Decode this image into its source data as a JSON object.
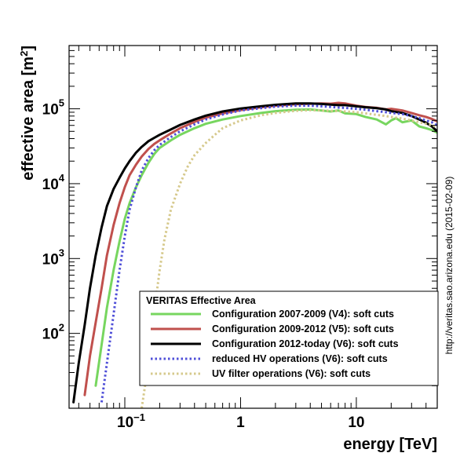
{
  "chart_data": {
    "type": "line",
    "title": "",
    "xlabel": "energy [TeV]",
    "ylabel_base": "effective area [m",
    "ylabel_sup": "2",
    "ylabel_close": "]",
    "xscale": "log",
    "yscale": "log",
    "xlim": [
      0.033,
      50
    ],
    "ylim": [
      10,
      700000
    ],
    "grid": false,
    "x_ticks": [
      {
        "value": 0.1,
        "base": "10",
        "exp": "−1"
      },
      {
        "value": 1,
        "base": "1",
        "exp": ""
      },
      {
        "value": 10,
        "base": "10",
        "exp": ""
      }
    ],
    "y_ticks": [
      {
        "value": 100,
        "base": "10",
        "exp": "2"
      },
      {
        "value": 1000,
        "base": "10",
        "exp": "3"
      },
      {
        "value": 10000,
        "base": "10",
        "exp": "4"
      },
      {
        "value": 100000,
        "base": "10",
        "exp": "5"
      }
    ],
    "legend": {
      "title": "VERITAS Effective Area",
      "position": "bottom-right"
    },
    "side_note": "http://veritas.sao.arizona.edu (2015-02-09)",
    "series": [
      {
        "name": "Configuration 2007-2009 (V4): soft cuts",
        "color": "#77d65f",
        "style": "solid",
        "x": [
          0.056,
          0.063,
          0.07,
          0.08,
          0.09,
          0.1,
          0.11,
          0.125,
          0.14,
          0.16,
          0.18,
          0.2,
          0.25,
          0.3,
          0.4,
          0.5,
          0.7,
          1.0,
          1.5,
          2.0,
          3.0,
          4.0,
          5.0,
          6.0,
          7.0,
          8.0,
          10,
          12,
          15,
          18,
          20,
          22,
          25,
          30,
          35,
          40,
          45,
          50
        ],
        "y": [
          20,
          70,
          220,
          700,
          1700,
          3400,
          5500,
          9000,
          13000,
          19000,
          25000,
          30000,
          38000,
          45000,
          55000,
          63000,
          72000,
          80000,
          88000,
          93000,
          97000,
          98000,
          95000,
          92000,
          95000,
          87000,
          85000,
          78000,
          72000,
          62000,
          70000,
          75000,
          66000,
          70000,
          58000,
          55000,
          52000,
          48000
        ]
      },
      {
        "name": "Configuration 2009-2012 (V5): soft cuts",
        "color": "#c0504d",
        "style": "solid",
        "x": [
          0.045,
          0.05,
          0.056,
          0.063,
          0.07,
          0.08,
          0.09,
          0.1,
          0.11,
          0.125,
          0.14,
          0.16,
          0.18,
          0.2,
          0.25,
          0.3,
          0.4,
          0.5,
          0.7,
          1.0,
          1.5,
          2.0,
          3.0,
          4.0,
          5.0,
          6.0,
          7.0,
          8.0,
          10,
          12,
          15,
          18,
          20,
          25,
          30,
          35,
          40,
          45,
          50
        ],
        "y": [
          15,
          50,
          140,
          400,
          1100,
          2800,
          5500,
          9000,
          13000,
          18000,
          23000,
          29000,
          34000,
          38000,
          47000,
          55000,
          67000,
          76000,
          87000,
          96000,
          105000,
          110000,
          115000,
          117000,
          118000,
          117000,
          120000,
          118000,
          110000,
          106000,
          103000,
          98000,
          100000,
          95000,
          88000,
          82000,
          78000,
          73000,
          68000
        ]
      },
      {
        "name": "Configuration 2012-today (V6): soft cuts",
        "color": "#000000",
        "style": "solid",
        "x": [
          0.036,
          0.04,
          0.045,
          0.05,
          0.056,
          0.063,
          0.07,
          0.08,
          0.09,
          0.1,
          0.11,
          0.125,
          0.14,
          0.16,
          0.18,
          0.2,
          0.25,
          0.3,
          0.4,
          0.5,
          0.7,
          1.0,
          1.5,
          2.0,
          3.0,
          4.0,
          5.0,
          6.0,
          7.0,
          8.0,
          10,
          12,
          15,
          18,
          20,
          25,
          30,
          35,
          40,
          45,
          50
        ],
        "y": [
          12,
          40,
          130,
          400,
          1100,
          2600,
          5000,
          8500,
          12000,
          16000,
          20000,
          26000,
          31000,
          37000,
          41000,
          45000,
          53000,
          61000,
          72000,
          81000,
          92000,
          101000,
          108000,
          113000,
          118000,
          118000,
          116000,
          114000,
          112000,
          112000,
          108000,
          105000,
          102000,
          98000,
          93000,
          88000,
          80000,
          72000,
          65000,
          58000,
          50000
        ]
      },
      {
        "name": "reduced HV operations (V6): soft cuts",
        "color": "#4f4fd8",
        "style": "dotted",
        "x": [
          0.063,
          0.07,
          0.08,
          0.09,
          0.1,
          0.11,
          0.125,
          0.14,
          0.16,
          0.18,
          0.2,
          0.25,
          0.3,
          0.4,
          0.5,
          0.7,
          1.0,
          1.5,
          2.0,
          3.0,
          4.0,
          5.0,
          6.0,
          7.0,
          8.0,
          10,
          12,
          15,
          18,
          20,
          25,
          30,
          35,
          40,
          45,
          50
        ],
        "y": [
          12,
          40,
          180,
          700,
          2000,
          4500,
          9000,
          15000,
          22000,
          28000,
          33000,
          42000,
          50000,
          62000,
          72000,
          84000,
          95000,
          102000,
          107000,
          110000,
          110000,
          108000,
          106000,
          104000,
          103000,
          100000,
          97000,
          93000,
          90000,
          88000,
          85000,
          80000,
          75000,
          70000,
          66000,
          60000
        ]
      },
      {
        "name": "UV filter operations (V6): soft cuts",
        "color": "#d6c98c",
        "style": "dotted",
        "x": [
          0.14,
          0.16,
          0.18,
          0.2,
          0.22,
          0.25,
          0.3,
          0.35,
          0.4,
          0.5,
          0.6,
          0.7,
          1.0,
          1.5,
          2.0,
          3.0,
          4.0,
          5.0,
          6.0,
          7.0,
          8.0,
          10,
          12,
          15,
          18,
          20,
          25,
          30,
          35,
          40,
          45,
          50
        ],
        "y": [
          10,
          40,
          200,
          700,
          1800,
          4500,
          10000,
          17000,
          24000,
          35000,
          45000,
          55000,
          70000,
          82000,
          88000,
          94000,
          96000,
          95000,
          94000,
          93000,
          92000,
          90000,
          87000,
          83000,
          80000,
          78000,
          74000,
          70000,
          66000,
          63000,
          60000,
          57000
        ]
      }
    ]
  }
}
